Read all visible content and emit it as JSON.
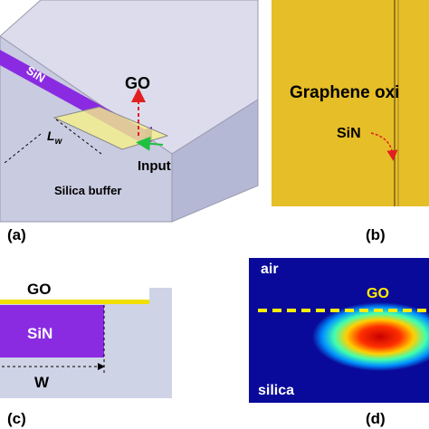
{
  "panel_a": {
    "waveguide": "SiN",
    "layer": "GO",
    "length_symbol": "L",
    "length_subscript": "w",
    "input": "Input",
    "buffer": "Silica buffer",
    "label": "(a)"
  },
  "panel_b": {
    "film": "Graphene oxi",
    "waveguide": "SiN",
    "label": "(b)"
  },
  "panel_c": {
    "layer": "GO",
    "waveguide": "SiN",
    "width": "W",
    "label": "(c)"
  },
  "panel_d": {
    "top": "air",
    "layer": "GO",
    "bottom": "silica",
    "label": "(d)"
  }
}
